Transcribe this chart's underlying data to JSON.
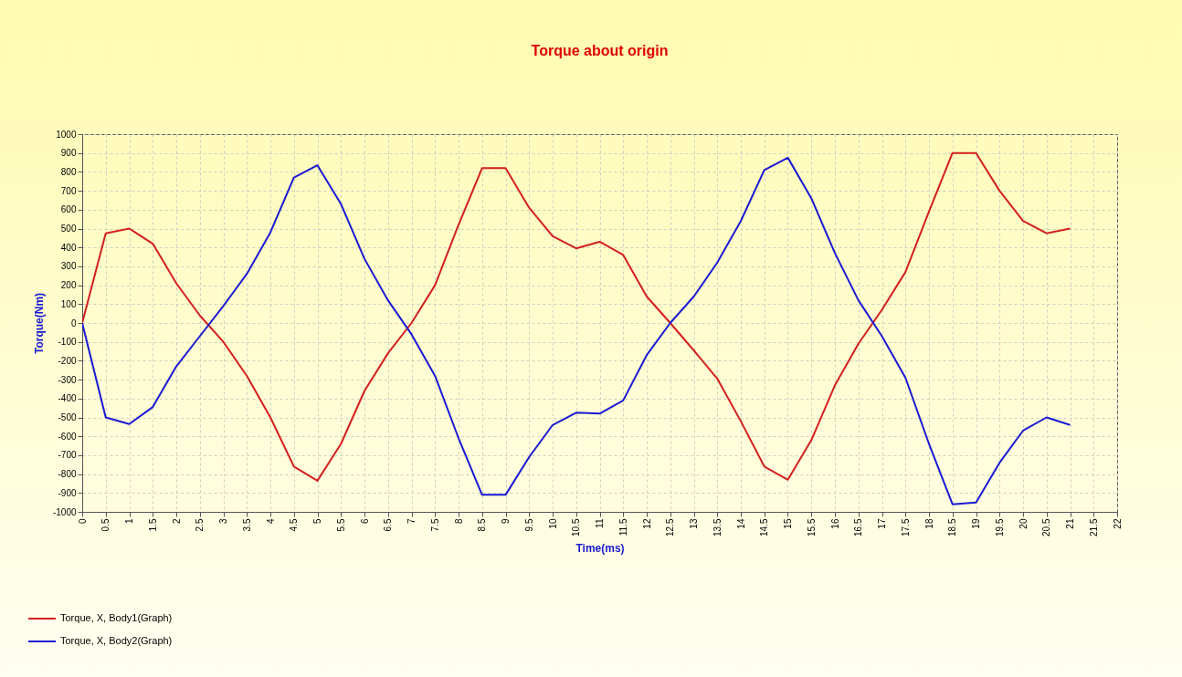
{
  "chart_data": {
    "type": "line",
    "title": "Torque about origin",
    "xlabel": "Time(ms)",
    "ylabel": "Torque(Nm)",
    "x": [
      0,
      0.5,
      1,
      1.5,
      2,
      2.5,
      3,
      3.5,
      4,
      4.5,
      5,
      5.5,
      6,
      6.5,
      7,
      7.5,
      8,
      8.5,
      9,
      9.5,
      10,
      10.5,
      11,
      11.5,
      12,
      12.5,
      13,
      13.5,
      14,
      14.5,
      15,
      15.5,
      16,
      16.5,
      17,
      17.5,
      18,
      18.5,
      19,
      19.5,
      20,
      20.5,
      21
    ],
    "series": [
      {
        "name": "Torque, X, Body1(Graph)",
        "color": "#d21f1f",
        "values": [
          0,
          475,
          500,
          420,
          210,
          40,
          -100,
          -280,
          -500,
          -760,
          -835,
          -640,
          -360,
          -160,
          0,
          200,
          520,
          820,
          820,
          610,
          460,
          395,
          430,
          360,
          140,
          0,
          -145,
          -295,
          -520,
          -760,
          -830,
          -620,
          -330,
          -110,
          70,
          270,
          590,
          900,
          900,
          700,
          540,
          475,
          500
        ]
      },
      {
        "name": "Torque, X, Body2(Graph)",
        "color": "#1a1ad2",
        "values": [
          0,
          -500,
          -535,
          -445,
          -230,
          -70,
          90,
          260,
          480,
          770,
          835,
          630,
          340,
          120,
          -60,
          -280,
          -610,
          -910,
          -910,
          -710,
          -540,
          -475,
          -480,
          -410,
          -170,
          0,
          140,
          320,
          540,
          810,
          875,
          660,
          370,
          120,
          -70,
          -290,
          -640,
          -960,
          -950,
          -740,
          -570,
          -500,
          -540
        ]
      }
    ],
    "xlim": [
      0,
      22
    ],
    "xticks": [
      0,
      0.5,
      1,
      1.5,
      2,
      2.5,
      3,
      3.5,
      4,
      4.5,
      5,
      5.5,
      6,
      6.5,
      7,
      7.5,
      8,
      8.5,
      9,
      9.5,
      10,
      10.5,
      11,
      11.5,
      12,
      12.5,
      13,
      13.5,
      14,
      14.5,
      15,
      15.5,
      16,
      16.5,
      17,
      17.5,
      18,
      18.5,
      19,
      19.5,
      20,
      20.5,
      21,
      21.5,
      22
    ],
    "ylim": [
      -1000,
      1000
    ],
    "yticks": [
      -1000,
      -900,
      -800,
      -700,
      -600,
      -500,
      -400,
      -300,
      -200,
      -100,
      0,
      100,
      200,
      300,
      400,
      500,
      600,
      700,
      800,
      900,
      1000
    ],
    "grid": true,
    "legend": "bottom left"
  }
}
